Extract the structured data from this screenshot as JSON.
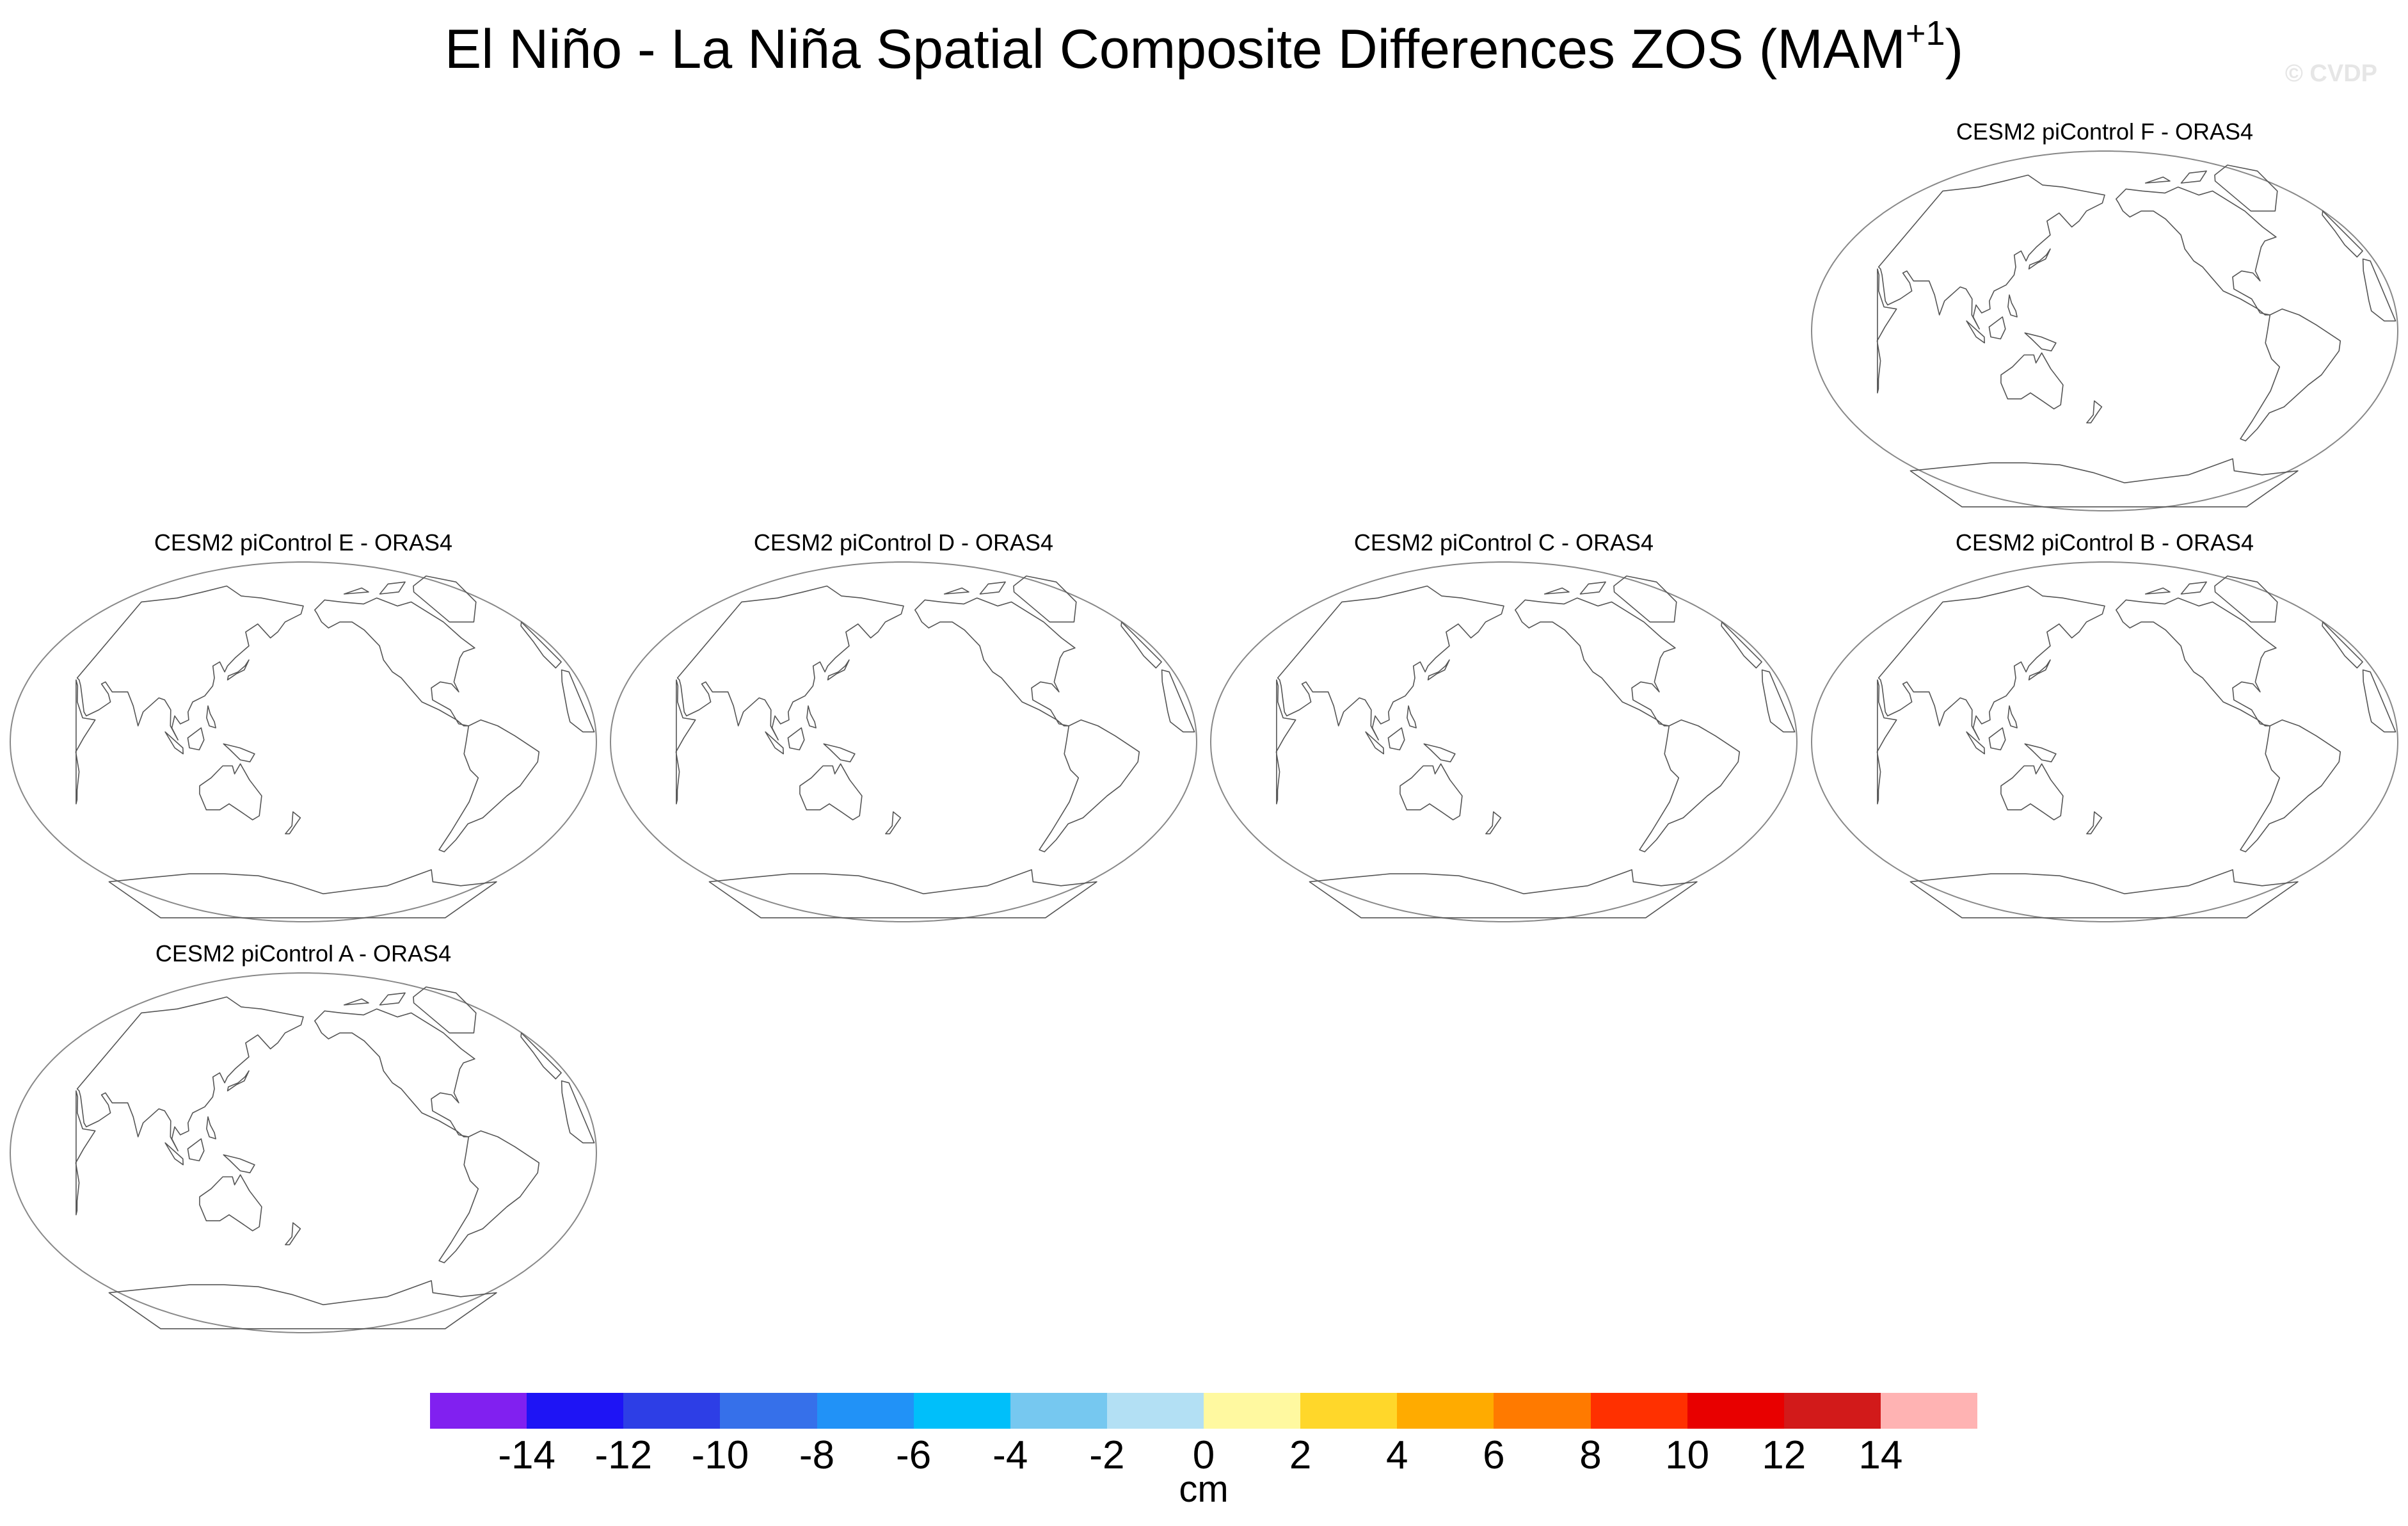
{
  "figure": {
    "title_main": "El Niño - La Niña Spatial Composite Differences ZOS (MAM",
    "title_sup": "+1",
    "title_end": ")",
    "watermark": "© CVDP"
  },
  "panels": [
    {
      "id": "F",
      "title": "CESM2 piControl F - ORAS4"
    },
    {
      "id": "E",
      "title": "CESM2 piControl E - ORAS4"
    },
    {
      "id": "D",
      "title": "CESM2 piControl D - ORAS4"
    },
    {
      "id": "C",
      "title": "CESM2 piControl C - ORAS4"
    },
    {
      "id": "B",
      "title": "CESM2 piControl B - ORAS4"
    },
    {
      "id": "A",
      "title": "CESM2 piControl A - ORAS4"
    }
  ],
  "colorbar": {
    "units": "cm",
    "tick_labels": [
      "-14",
      "-12",
      "-10",
      "-8",
      "-6",
      "-4",
      "-2",
      "0",
      "2",
      "4",
      "6",
      "8",
      "10",
      "12",
      "14"
    ],
    "colors": [
      "#8120f0",
      "#1e14f5",
      "#2d3ee6",
      "#3670ea",
      "#2192f7",
      "#00bffa",
      "#76c8f0",
      "#b3e0f4",
      "#fff9a0",
      "#ffd72a",
      "#ffab00",
      "#ff7a00",
      "#ff3000",
      "#e80000",
      "#d21a1a",
      "#ffb3b3"
    ]
  }
}
